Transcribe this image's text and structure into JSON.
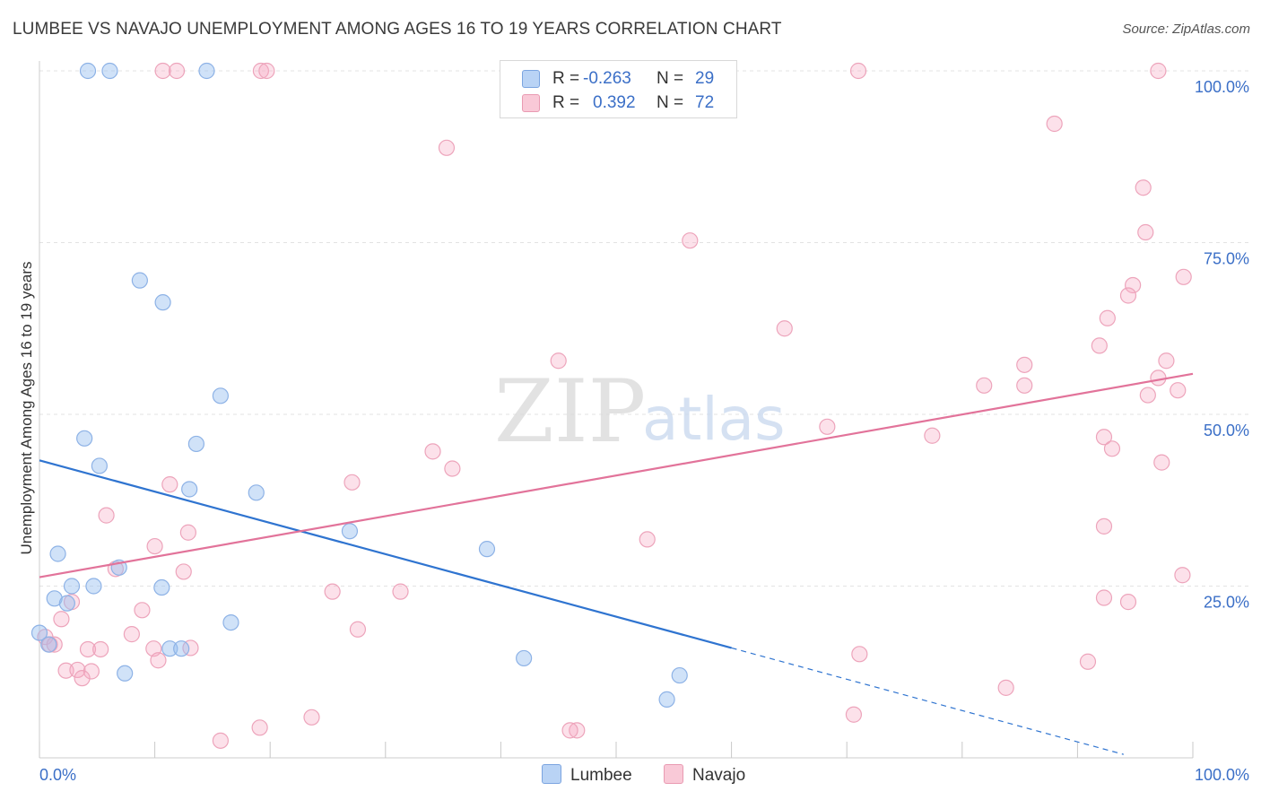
{
  "header": {
    "title": "LUMBEE VS NAVAJO UNEMPLOYMENT AMONG AGES 16 TO 19 YEARS CORRELATION CHART",
    "source": "Source: ZipAtlas.com"
  },
  "watermark": {
    "zip": "ZIP",
    "atlas": "atlas"
  },
  "legend": {
    "r_label": "R =",
    "n_label": "N =",
    "rows": [
      {
        "name": "Lumbee",
        "r": "-0.263",
        "n": "29",
        "fill": "#b9d3f5",
        "stroke": "#7ba4e0"
      },
      {
        "name": "Navajo",
        "r": "0.392",
        "n": "72",
        "fill": "#f9c9d7",
        "stroke": "#e99ab2"
      }
    ]
  },
  "colors": {
    "lumbee_point_fill": "rgba(150,190,240,0.45)",
    "lumbee_point_stroke": "#8db2e6",
    "lumbee_line": "#2f74d0",
    "navajo_point_fill": "rgba(245,170,195,0.35)",
    "navajo_point_stroke": "#eda4bb",
    "navajo_line": "#e2739a",
    "grid": "#e3e3e3",
    "tick_label": "#3b6fc7"
  },
  "chart_data": {
    "type": "scatter",
    "title": "LUMBEE VS NAVAJO UNEMPLOYMENT AMONG AGES 16 TO 19 YEARS CORRELATION CHART",
    "xlabel": "",
    "ylabel": "Unemployment Among Ages 16 to 19 years",
    "xlim": [
      0,
      100
    ],
    "ylim": [
      0,
      100
    ],
    "x_tick_labels": [
      "0.0%",
      "100.0%"
    ],
    "y_tick_labels": [
      "25.0%",
      "50.0%",
      "75.0%",
      "100.0%"
    ],
    "y_ticks": [
      25,
      50,
      75,
      100
    ],
    "grid": true,
    "legend_position": "top-center",
    "series": [
      {
        "name": "Lumbee",
        "r": -0.263,
        "n": 29,
        "trend": {
          "x": [
            0,
            60
          ],
          "y": [
            43.3,
            16.0
          ],
          "dashed_extension_x": [
            60,
            94
          ],
          "dashed_extension_y": [
            16.0,
            0.5
          ]
        },
        "points": [
          [
            4.2,
            100
          ],
          [
            6.1,
            100
          ],
          [
            14.5,
            100
          ],
          [
            8.7,
            69.5
          ],
          [
            10.7,
            66.3
          ],
          [
            15.7,
            52.7
          ],
          [
            3.9,
            46.5
          ],
          [
            13.6,
            45.7
          ],
          [
            5.2,
            42.5
          ],
          [
            13.0,
            39.1
          ],
          [
            18.8,
            38.6
          ],
          [
            26.9,
            33.0
          ],
          [
            38.8,
            30.4
          ],
          [
            1.6,
            29.7
          ],
          [
            6.9,
            27.7
          ],
          [
            2.8,
            25.0
          ],
          [
            4.7,
            25.0
          ],
          [
            10.6,
            24.8
          ],
          [
            1.3,
            23.2
          ],
          [
            2.4,
            22.5
          ],
          [
            16.6,
            19.7
          ],
          [
            0.0,
            18.2
          ],
          [
            0.8,
            16.5
          ],
          [
            11.3,
            15.9
          ],
          [
            12.3,
            15.9
          ],
          [
            42.0,
            14.5
          ],
          [
            55.5,
            12.0
          ],
          [
            7.4,
            12.3
          ],
          [
            54.4,
            8.5
          ]
        ]
      },
      {
        "name": "Navajo",
        "r": 0.392,
        "n": 72,
        "trend": {
          "x": [
            0,
            100
          ],
          "y": [
            26.3,
            55.9
          ]
        },
        "points": [
          [
            10.7,
            100
          ],
          [
            11.9,
            100
          ],
          [
            19.2,
            100
          ],
          [
            19.7,
            100
          ],
          [
            71.0,
            100
          ],
          [
            97.0,
            100
          ],
          [
            88.0,
            92.3
          ],
          [
            35.3,
            88.8
          ],
          [
            95.7,
            83.0
          ],
          [
            95.9,
            76.5
          ],
          [
            56.4,
            75.3
          ],
          [
            99.2,
            70.0
          ],
          [
            94.8,
            68.8
          ],
          [
            94.4,
            67.3
          ],
          [
            92.6,
            64.0
          ],
          [
            64.6,
            62.5
          ],
          [
            91.9,
            60.0
          ],
          [
            45.0,
            57.8
          ],
          [
            97.7,
            57.8
          ],
          [
            85.4,
            57.2
          ],
          [
            97.0,
            55.3
          ],
          [
            81.9,
            54.2
          ],
          [
            85.4,
            54.2
          ],
          [
            98.7,
            53.5
          ],
          [
            96.1,
            52.8
          ],
          [
            68.3,
            48.2
          ],
          [
            77.4,
            46.9
          ],
          [
            92.3,
            46.7
          ],
          [
            93.0,
            45.0
          ],
          [
            34.1,
            44.6
          ],
          [
            97.3,
            43.0
          ],
          [
            35.8,
            42.1
          ],
          [
            27.1,
            40.1
          ],
          [
            11.3,
            39.8
          ],
          [
            5.8,
            35.3
          ],
          [
            92.3,
            33.7
          ],
          [
            12.9,
            32.8
          ],
          [
            52.7,
            31.8
          ],
          [
            10.0,
            30.8
          ],
          [
            6.6,
            27.5
          ],
          [
            12.5,
            27.1
          ],
          [
            25.4,
            24.2
          ],
          [
            31.3,
            24.2
          ],
          [
            92.3,
            23.3
          ],
          [
            94.4,
            22.7
          ],
          [
            2.8,
            22.7
          ],
          [
            8.9,
            21.5
          ],
          [
            1.9,
            20.2
          ],
          [
            27.6,
            18.7
          ],
          [
            8.0,
            18.0
          ],
          [
            0.5,
            17.6
          ],
          [
            0.9,
            16.5
          ],
          [
            1.3,
            16.5
          ],
          [
            4.2,
            15.8
          ],
          [
            5.3,
            15.8
          ],
          [
            9.9,
            15.9
          ],
          [
            13.1,
            16.0
          ],
          [
            71.1,
            15.1
          ],
          [
            10.3,
            14.2
          ],
          [
            90.9,
            14.0
          ],
          [
            2.3,
            12.7
          ],
          [
            3.3,
            12.8
          ],
          [
            4.5,
            12.6
          ],
          [
            3.7,
            11.6
          ],
          [
            83.8,
            10.2
          ],
          [
            19.1,
            4.4
          ],
          [
            23.6,
            5.9
          ],
          [
            70.6,
            6.3
          ],
          [
            46.6,
            4.0
          ],
          [
            46.0,
            4.0
          ],
          [
            15.7,
            2.5
          ],
          [
            99.1,
            26.6
          ]
        ]
      }
    ]
  }
}
